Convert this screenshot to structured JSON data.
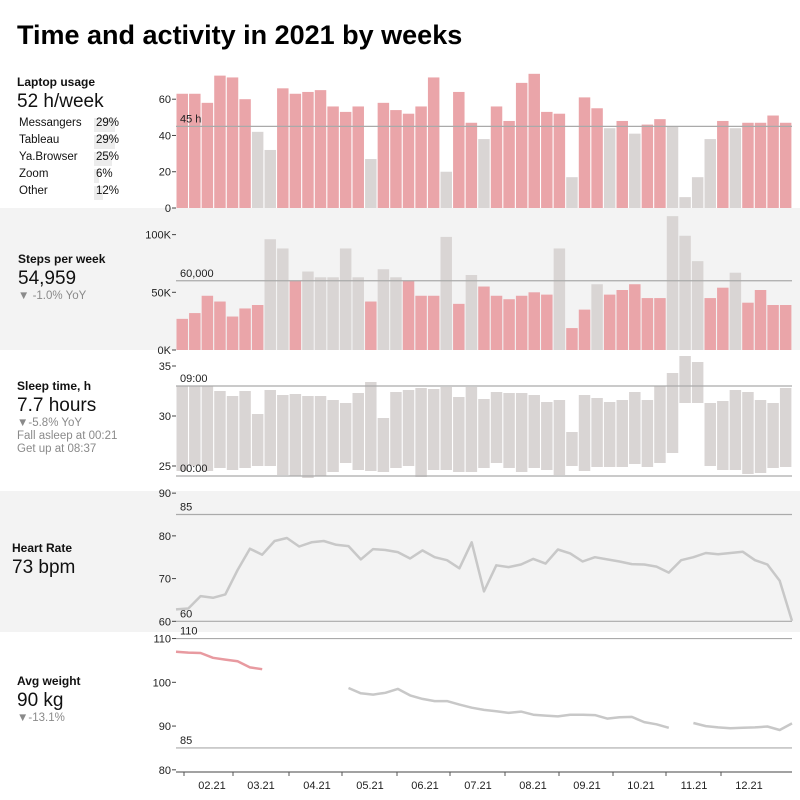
{
  "title": "Time and activity in 2021 by weeks",
  "colors": {
    "highlight": "#eaa5a9",
    "muted": "#d9d5d4",
    "line": "#c8c8c8",
    "refline": "#aaaaaa",
    "weight_highlight": "#e89aa0"
  },
  "x_axis": {
    "tick_labels": [
      "02.21",
      "03.21",
      "04.21",
      "05.21",
      "06.21",
      "07.21",
      "08.21",
      "09.21",
      "10.21",
      "11.21",
      "12.21"
    ]
  },
  "laptop": {
    "label": "Laptop usage",
    "value": "52 h/week",
    "apps": [
      {
        "name": "Messangers",
        "pct": "29%"
      },
      {
        "name": "Tableau",
        "pct": "29%"
      },
      {
        "name": "Ya.Browser",
        "pct": "25%"
      },
      {
        "name": "Zoom",
        "pct": "6%"
      },
      {
        "name": "Other",
        "pct": "12%"
      }
    ]
  },
  "steps": {
    "label": "Steps per week",
    "value": "54,959",
    "yoy": "▼ -1.0% YoY"
  },
  "sleep": {
    "label": "Sleep time, h",
    "value": "7.7 hours",
    "yoy": "▼-5.8% YoY",
    "asleep": "Fall asleep at 00:21",
    "getup": "Get up at 08:37"
  },
  "heart": {
    "label": "Heart Rate",
    "value": "73 bpm"
  },
  "weight": {
    "label": "Avg weight",
    "value": "90 kg",
    "yoy": "▼-13.1%"
  },
  "chart_data": [
    {
      "type": "bar",
      "name": "laptop",
      "ylim": [
        0,
        75
      ],
      "y_ticks": [
        0,
        20,
        40,
        60
      ],
      "reference": {
        "value": 45,
        "label": "45 h"
      },
      "values": [
        63,
        63,
        58,
        73,
        72,
        60,
        42,
        32,
        66,
        63,
        64,
        65,
        56,
        53,
        56,
        27,
        58,
        54,
        52,
        56,
        72,
        20,
        64,
        47,
        38,
        56,
        48,
        69,
        74,
        53,
        52,
        17,
        61,
        55,
        44,
        48,
        41,
        46,
        49,
        45,
        6,
        17,
        38,
        48,
        44,
        47,
        47,
        51,
        47
      ],
      "highlight": [
        true,
        true,
        true,
        true,
        true,
        true,
        false,
        false,
        true,
        true,
        true,
        true,
        true,
        true,
        true,
        false,
        true,
        true,
        true,
        true,
        true,
        false,
        true,
        true,
        false,
        true,
        true,
        true,
        true,
        true,
        true,
        false,
        true,
        true,
        false,
        true,
        false,
        true,
        true,
        false,
        false,
        false,
        false,
        true,
        false,
        true,
        true,
        true,
        true
      ]
    },
    {
      "type": "bar",
      "name": "steps",
      "ylim": [
        0,
        117000
      ],
      "y_ticks": [
        {
          "value": 0,
          "label": "0K"
        },
        {
          "value": 50000,
          "label": "50K"
        },
        {
          "value": 100000,
          "label": "100K"
        }
      ],
      "reference": {
        "value": 60000,
        "label": "60,000"
      },
      "values": [
        27000,
        32000,
        47000,
        42000,
        29000,
        36000,
        39000,
        96000,
        88000,
        60000,
        68000,
        63000,
        63000,
        88000,
        63000,
        42000,
        70000,
        63000,
        60000,
        47000,
        47000,
        98000,
        40000,
        65000,
        55000,
        47000,
        44000,
        47000,
        50000,
        48000,
        88000,
        19000,
        35000,
        57000,
        48000,
        52000,
        57000,
        45000,
        45000,
        116000,
        99000,
        77000,
        45000,
        54000,
        67000,
        41000,
        52000,
        39000,
        39000
      ],
      "highlight": [
        true,
        true,
        true,
        true,
        true,
        true,
        true,
        false,
        false,
        true,
        false,
        false,
        false,
        false,
        false,
        true,
        false,
        false,
        true,
        true,
        true,
        false,
        true,
        false,
        true,
        true,
        true,
        true,
        true,
        true,
        false,
        true,
        true,
        false,
        true,
        true,
        true,
        true,
        true,
        false,
        false,
        false,
        true,
        true,
        false,
        true,
        true,
        true,
        true
      ]
    },
    {
      "type": "range_bar",
      "name": "sleep",
      "ylim": [
        22.5,
        36.5
      ],
      "y_ticks": [
        25,
        30,
        35
      ],
      "reference_lines": [
        {
          "value": 33,
          "label": "09:00"
        },
        {
          "value": 24,
          "label": "00:00"
        }
      ],
      "ranges": [
        [
          24.5,
          33
        ],
        [
          25,
          33
        ],
        [
          24.5,
          33
        ],
        [
          24.8,
          32.5
        ],
        [
          24.6,
          32
        ],
        [
          24.8,
          32.5
        ],
        [
          25.0,
          30.2
        ],
        [
          25.0,
          32.6
        ],
        [
          24.1,
          32.1
        ],
        [
          24.0,
          32.2
        ],
        [
          23.8,
          32.0
        ],
        [
          24.0,
          32.0
        ],
        [
          24.4,
          31.6
        ],
        [
          25.3,
          31.3
        ],
        [
          24.6,
          32.3
        ],
        [
          24.5,
          33.4
        ],
        [
          24.4,
          29.8
        ],
        [
          24.8,
          32.4
        ],
        [
          25.0,
          32.6
        ],
        [
          23.9,
          32.8
        ],
        [
          24.6,
          32.7
        ],
        [
          24.6,
          32.9
        ],
        [
          24.4,
          31.9
        ],
        [
          24.4,
          32.9
        ],
        [
          24.8,
          31.7
        ],
        [
          25.3,
          32.4
        ],
        [
          24.8,
          32.3
        ],
        [
          24.4,
          32.3
        ],
        [
          24.8,
          32.1
        ],
        [
          24.6,
          31.4
        ],
        [
          24.1,
          31.6
        ],
        [
          25.0,
          28.4
        ],
        [
          24.5,
          32.1
        ],
        [
          24.9,
          31.8
        ],
        [
          24.9,
          31.4
        ],
        [
          24.9,
          31.6
        ],
        [
          25.2,
          32.4
        ],
        [
          24.9,
          31.6
        ],
        [
          25.3,
          33.0
        ],
        [
          26.3,
          34.3
        ],
        [
          31.3,
          36.0
        ],
        [
          31.3,
          35.4
        ],
        [
          25.0,
          31.3
        ],
        [
          24.6,
          31.5
        ],
        [
          24.6,
          32.6
        ],
        [
          24.2,
          32.4
        ],
        [
          24.3,
          31.6
        ],
        [
          24.8,
          31.3
        ],
        [
          24.9,
          32.8
        ]
      ]
    },
    {
      "type": "line",
      "name": "heart_rate",
      "ylim": [
        57.5,
        90.5
      ],
      "y_ticks": [
        60,
        70,
        80,
        90
      ],
      "reference_lines": [
        {
          "value": 85,
          "label": "85"
        },
        {
          "value": 60,
          "label": "60"
        }
      ],
      "values": [
        62.8,
        63,
        65.9,
        65.5,
        66.3,
        72,
        77,
        75.6,
        78.8,
        79.5,
        77.5,
        78.5,
        78.8,
        77.9,
        77.6,
        74.5,
        76.9,
        76.7,
        76.2,
        74.7,
        76.6,
        75,
        74.3,
        72.4,
        78.5,
        67,
        73.1,
        72.7,
        73.3,
        74.6,
        73.5,
        76.8,
        75.9,
        74,
        75,
        74.5,
        74,
        73.4,
        73.3,
        72.8,
        71.4,
        74.3,
        75,
        76,
        75.7,
        76,
        76.3,
        74.3,
        73.3,
        69.5,
        60.1
      ]
    },
    {
      "type": "line",
      "name": "weight",
      "ylim": [
        79.5,
        111.5
      ],
      "y_ticks": [
        80,
        90,
        100,
        110
      ],
      "reference_lines": [
        {
          "value": 110,
          "label": "110"
        },
        {
          "value": 85,
          "label": "85"
        }
      ],
      "highlight_weeks": [
        0,
        1,
        2,
        3,
        4,
        5,
        6,
        7
      ],
      "values": [
        107.0,
        106.8,
        106.7,
        105.6,
        105.2,
        104.8,
        103.4,
        103.0,
        null,
        null,
        null,
        null,
        null,
        null,
        98.7,
        97.5,
        97.2,
        97.6,
        98.5,
        97.0,
        96.2,
        95.7,
        95.7,
        94.9,
        94.2,
        93.7,
        93.4,
        93.0,
        93.3,
        92.6,
        92.4,
        92.2,
        92.6,
        92.6,
        92.5,
        91.7,
        92.0,
        92.1,
        90.9,
        90.4,
        89.6,
        null,
        90.7,
        90.0,
        89.7,
        89.5,
        89.6,
        89.7,
        89.9,
        89.1,
        90.6
      ]
    }
  ]
}
